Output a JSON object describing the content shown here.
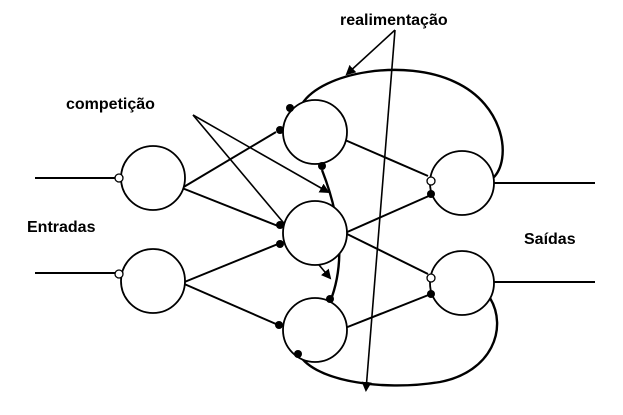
{
  "labels": {
    "feedback": "realimentação",
    "competition": "competição",
    "inputs": "Entradas",
    "outputs": "Saídas"
  }
}
